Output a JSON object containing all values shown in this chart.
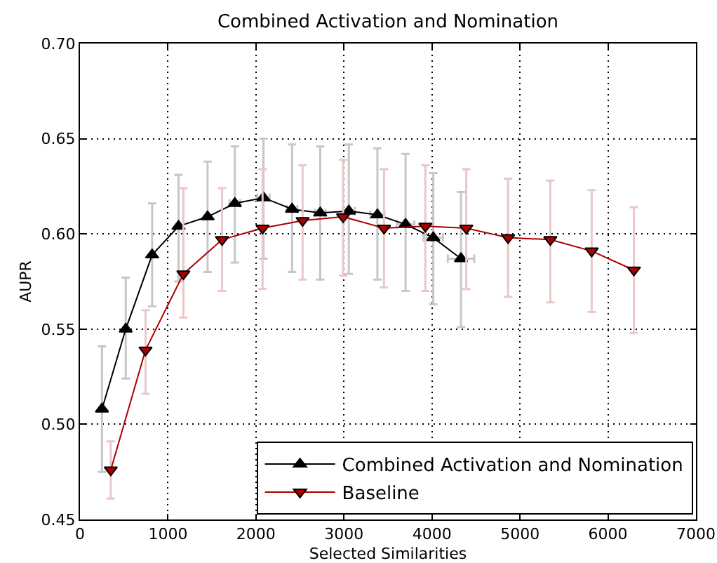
{
  "chart_data": {
    "type": "line",
    "title": "Combined Activation and Nomination",
    "xlabel": "Selected Similarities",
    "ylabel": "AUPR",
    "xlim": [
      0,
      7000
    ],
    "xticks": [
      0,
      1000,
      2000,
      3000,
      4000,
      5000,
      6000,
      7000
    ],
    "ylim": [
      0.45,
      0.7
    ],
    "yticks": [
      0.45,
      {
        "value": 0.5,
        "label": "0.50"
      },
      0.55,
      {
        "value": 0.6,
        "label": "0.60"
      },
      0.65,
      {
        "value": 0.7,
        "label": "0.70"
      }
    ],
    "grid": true,
    "legend": "bottom right",
    "series": [
      {
        "name": "Combined Activation and Nomination",
        "color": "#000000",
        "marker": "triangle",
        "x": [
          250,
          520,
          820,
          1120,
          1450,
          1760,
          2085,
          2410,
          2730,
          3055,
          3380,
          3700,
          4015,
          4330
        ],
        "values": [
          0.508,
          0.55,
          0.589,
          0.604,
          0.609,
          0.616,
          0.619,
          0.613,
          0.611,
          0.612,
          0.61,
          0.605,
          0.598,
          0.587
        ],
        "errors": [
          [
            0.475,
            0.541
          ],
          [
            0.524,
            0.577
          ],
          [
            0.562,
            0.616
          ],
          [
            0.575,
            0.631
          ],
          [
            0.58,
            0.638
          ],
          [
            0.585,
            0.646
          ],
          [
            0.587,
            0.65
          ],
          [
            0.58,
            0.647
          ],
          [
            0.576,
            0.646
          ],
          [
            0.579,
            0.647
          ],
          [
            0.576,
            0.645
          ],
          [
            0.57,
            0.642
          ],
          [
            0.563,
            0.632
          ],
          [
            0.551,
            0.622
          ]
        ],
        "xerrors": [
          null,
          null,
          null,
          null,
          null,
          60,
          70,
          60,
          60,
          70,
          80,
          100,
          110,
          150
        ]
      },
      {
        "name": "Baseline",
        "color": "#aa0000",
        "marker": "triangle-down",
        "x": [
          350,
          745,
          1175,
          1615,
          2075,
          2530,
          2990,
          3455,
          3925,
          4390,
          4865,
          5345,
          5815,
          6295
        ],
        "values": [
          0.476,
          0.539,
          0.579,
          0.597,
          0.603,
          0.607,
          0.609,
          0.603,
          0.604,
          0.603,
          0.598,
          0.597,
          0.591,
          0.581
        ],
        "errors": [
          [
            0.461,
            0.491
          ],
          [
            0.516,
            0.56
          ],
          [
            0.556,
            0.624
          ],
          [
            0.57,
            0.624
          ],
          [
            0.571,
            0.634
          ],
          [
            0.576,
            0.636
          ],
          [
            0.578,
            0.639
          ],
          [
            0.572,
            0.634
          ],
          [
            0.57,
            0.636
          ],
          [
            0.571,
            0.634
          ],
          [
            0.567,
            0.629
          ],
          [
            0.564,
            0.628
          ],
          [
            0.559,
            0.623
          ],
          [
            0.548,
            0.614
          ]
        ]
      }
    ]
  }
}
